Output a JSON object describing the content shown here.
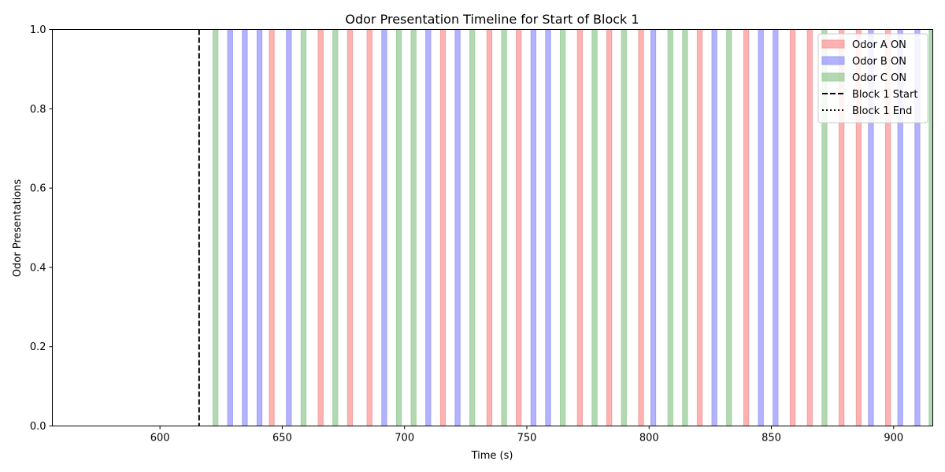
{
  "chart_data": {
    "type": "timeline",
    "title": "Odor Presentation Timeline for Start of Block 1",
    "xlabel": "Time (s)",
    "ylabel": "Odor Presentations",
    "xlim": [
      556,
      916
    ],
    "ylim": [
      0,
      1
    ],
    "xticks": [
      600,
      650,
      700,
      750,
      800,
      850,
      900
    ],
    "yticks": [
      0.0,
      0.2,
      0.4,
      0.6,
      0.8,
      1.0
    ],
    "grid": false,
    "legend_position": "top-right",
    "block_start": 616,
    "block_end": null,
    "legend": [
      {
        "label": "Odor A ON",
        "kind": "patch",
        "series": "A"
      },
      {
        "label": "Odor B ON",
        "kind": "patch",
        "series": "B"
      },
      {
        "label": "Odor C ON",
        "kind": "patch",
        "series": "C"
      },
      {
        "label": "Block 1 Start",
        "kind": "dashed-line"
      },
      {
        "label": "Block 1 End",
        "kind": "dotted-line"
      }
    ],
    "series": [
      {
        "name": "Odor A ON",
        "key": "A",
        "color": "#ff7f7f",
        "edge_color": "#f0a0a0",
        "duration": 2,
        "onsets": [
          644.7,
          664.7,
          676.7,
          684.7,
          714.7,
          733.7,
          745.7,
          770.7,
          782.7,
          795.7,
          819.7,
          838.7,
          857.7,
          864.7,
          877.7,
          884.7,
          896.7
        ]
      },
      {
        "name": "Odor B ON",
        "key": "B",
        "color": "#7f7fff",
        "edge_color": "#a0a0f0",
        "duration": 2,
        "onsets": [
          627.7,
          633.7,
          639.7,
          651.7,
          690.7,
          708.7,
          720.7,
          751.7,
          757.7,
          800.7,
          825.7,
          844.7,
          850.7,
          889.7,
          901.7,
          908.7
        ]
      },
      {
        "name": "Odor C ON",
        "key": "C",
        "color": "#7fbf7f",
        "edge_color": "#a0d0a0",
        "duration": 2,
        "onsets": [
          621.7,
          657.7,
          670.7,
          696.7,
          702.7,
          726.7,
          739.7,
          763.7,
          776.7,
          788.7,
          807.7,
          813.7,
          831.7,
          870.7,
          914.5
        ]
      }
    ]
  }
}
